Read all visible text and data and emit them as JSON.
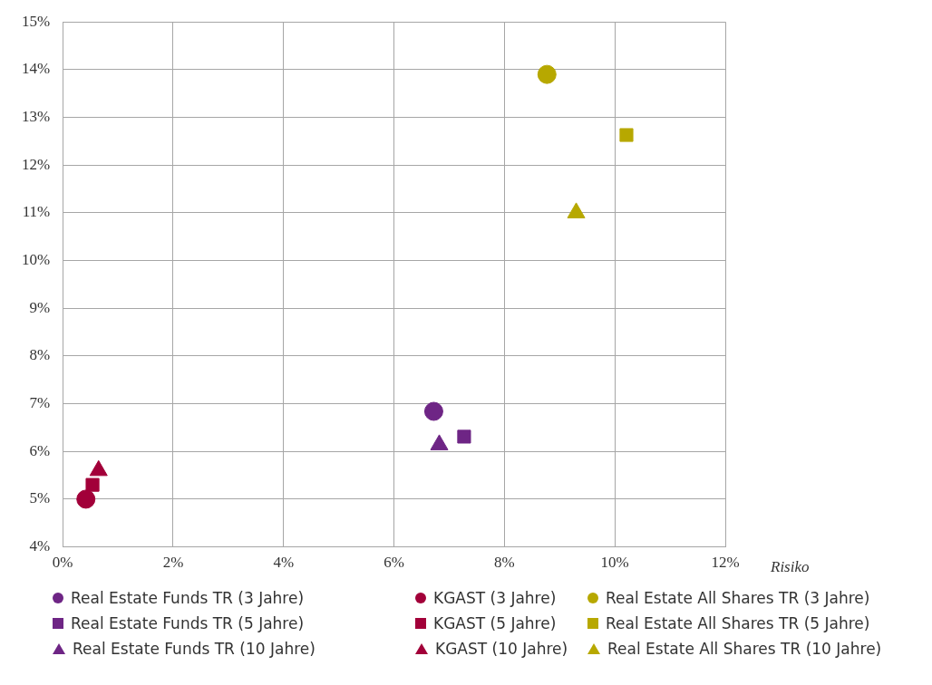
{
  "chart_data": {
    "type": "scatter",
    "xlabel": "Risiko",
    "xlim": [
      0,
      12
    ],
    "xticks": [
      {
        "value": 0,
        "label": "0%"
      },
      {
        "value": 2,
        "label": "2%"
      },
      {
        "value": 4,
        "label": "4%"
      },
      {
        "value": 6,
        "label": "6%"
      },
      {
        "value": 8,
        "label": "8%"
      },
      {
        "value": 10,
        "label": "10%"
      },
      {
        "value": 12,
        "label": "12%"
      }
    ],
    "ylim": [
      4,
      15
    ],
    "yticks": [
      {
        "value": 4,
        "label": "4%"
      },
      {
        "value": 5,
        "label": "5%"
      },
      {
        "value": 6,
        "label": "6%"
      },
      {
        "value": 7,
        "label": "7%"
      },
      {
        "value": 8,
        "label": "8%"
      },
      {
        "value": 9,
        "label": "9%"
      },
      {
        "value": 10,
        "label": "10%"
      },
      {
        "value": 11,
        "label": "11%"
      },
      {
        "value": 12,
        "label": "12%"
      },
      {
        "value": 13,
        "label": "13%"
      },
      {
        "value": 14,
        "label": "14%"
      },
      {
        "value": 15,
        "label": "15%"
      }
    ],
    "grid": true,
    "legend": "bottom",
    "series": [
      {
        "name": "Real Estate Funds TR (3 Jahre)",
        "color": "#6e2585",
        "marker": "circle",
        "x": [
          6.72
        ],
        "values": [
          6.84
        ]
      },
      {
        "name": "KGAST (3 Jahre)",
        "color": "#a20039",
        "marker": "circle",
        "x": [
          0.42
        ],
        "values": [
          5.0
        ]
      },
      {
        "name": "Real Estate All Shares TR (3 Jahre)",
        "color": "#b7a800",
        "marker": "circle",
        "x": [
          8.77
        ],
        "values": [
          13.9
        ]
      },
      {
        "name": "Real Estate Funds TR (5 Jahre)",
        "color": "#6e2585",
        "marker": "square",
        "x": [
          7.27
        ],
        "values": [
          6.31
        ]
      },
      {
        "name": "KGAST (5 Jahre)",
        "color": "#a20039",
        "marker": "square",
        "x": [
          0.54
        ],
        "values": [
          5.3
        ]
      },
      {
        "name": "Real Estate All Shares TR (5 Jahre)",
        "color": "#b7a800",
        "marker": "square",
        "x": [
          10.21
        ],
        "values": [
          12.63
        ]
      },
      {
        "name": "Real Estate Funds TR (10 Jahre)",
        "color": "#6e2585",
        "marker": "triangle",
        "x": [
          6.82
        ],
        "values": [
          6.14
        ]
      },
      {
        "name": "KGAST (10 Jahre)",
        "color": "#a20039",
        "marker": "triangle",
        "x": [
          0.65
        ],
        "values": [
          5.6
        ]
      },
      {
        "name": "Real Estate All Shares TR (10 Jahre)",
        "color": "#b7a800",
        "marker": "triangle",
        "x": [
          9.3
        ],
        "values": [
          11.0
        ]
      }
    ]
  }
}
